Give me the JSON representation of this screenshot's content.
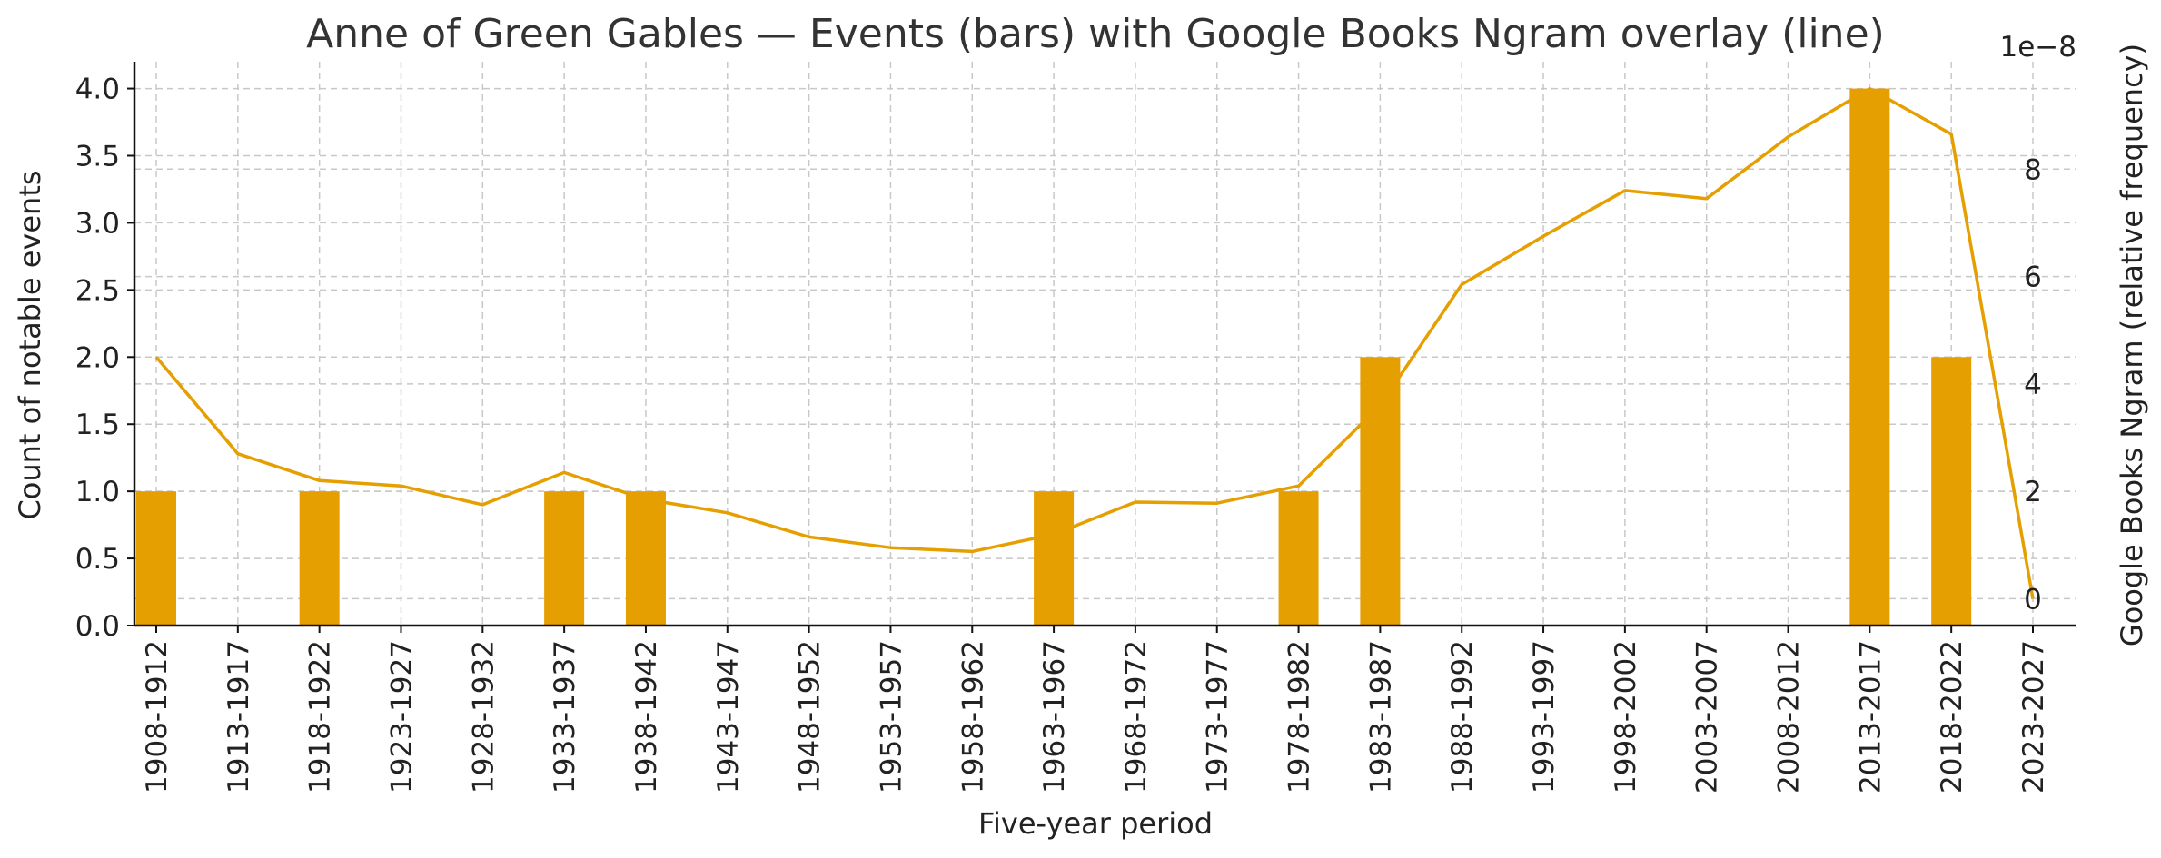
{
  "chart_data": {
    "type": "bar",
    "title": "Anne of Green Gables — Events (bars) with Google Books Ngram overlay (line)",
    "xlabel": "Five-year period",
    "ylabel": "Count of notable events",
    "y2label": "Google Books Ngram (relative frequency)",
    "y2_offset_text": "1e−8",
    "categories": [
      "1908-1912",
      "1913-1917",
      "1918-1922",
      "1923-1927",
      "1928-1932",
      "1933-1937",
      "1938-1942",
      "1943-1947",
      "1948-1952",
      "1953-1957",
      "1958-1962",
      "1963-1967",
      "1968-1972",
      "1973-1977",
      "1978-1982",
      "1983-1987",
      "1988-1992",
      "1993-1997",
      "1998-2002",
      "2003-2007",
      "2008-2012",
      "2013-2017",
      "2018-2022",
      "2023-2027"
    ],
    "series": [
      {
        "type": "bar",
        "axis": "left",
        "color": "#E69F00",
        "values": [
          1,
          0,
          1,
          0,
          0,
          1,
          1,
          0,
          0,
          0,
          0,
          1,
          0,
          0,
          1,
          2,
          0,
          0,
          0,
          0,
          0,
          4,
          2,
          0
        ]
      },
      {
        "type": "line",
        "axis": "right",
        "color": "#E69F00",
        "values": [
          4.5,
          2.7,
          2.2,
          2.1,
          1.75,
          2.35,
          1.85,
          1.6,
          1.15,
          0.95,
          0.88,
          1.2,
          1.8,
          1.78,
          2.1,
          3.6,
          5.85,
          6.75,
          7.6,
          7.45,
          8.6,
          9.5,
          8.65,
          0.0
        ]
      }
    ],
    "ylim": [
      0,
      4.2
    ],
    "yticks": [
      0.0,
      0.5,
      1.0,
      1.5,
      2.0,
      2.5,
      3.0,
      3.5,
      4.0
    ],
    "y2lim": [
      -0.5,
      10.0
    ],
    "y2ticks": [
      0,
      2,
      4,
      6,
      8
    ],
    "grid": true,
    "legend": "none"
  }
}
